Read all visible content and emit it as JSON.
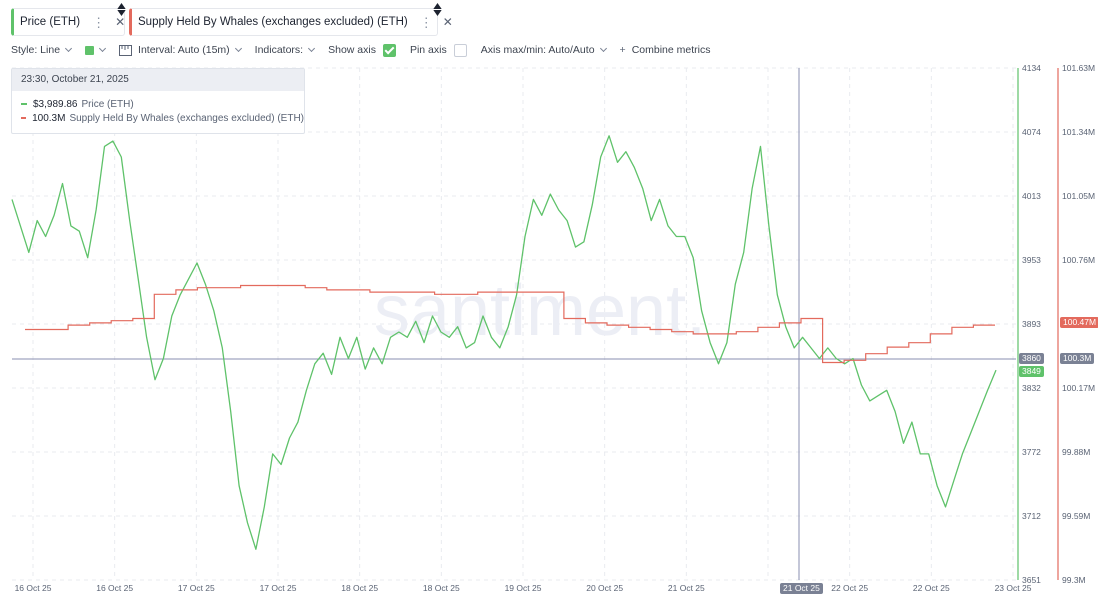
{
  "metrics": [
    {
      "label": "Price (ETH)",
      "color": "#5fc26a"
    },
    {
      "label": "Supply Held By Whales (exchanges excluded) (ETH)",
      "color": "#e36a5d"
    }
  ],
  "toolbar": {
    "style_label": "Style: Line",
    "interval_label": "Interval: Auto (15m)",
    "indicators_label": "Indicators:",
    "show_axis_label": "Show axis",
    "pin_axis_label": "Pin axis",
    "axis_maxmin_label": "Axis max/min: Auto/Auto",
    "combine_label": "Combine metrics"
  },
  "tooltip": {
    "date": "23:30, October 21, 2025",
    "price_value": "$3,989.86",
    "price_name": "Price (ETH)",
    "supply_value": "100.3M",
    "supply_name": "Supply Held By Whales (exchanges excluded) (ETH)"
  },
  "watermark": "santiment.",
  "badges": {
    "hover_price": "3860",
    "last_price": "3849",
    "last_supply": "100.47M",
    "hover_supply": "100.3M",
    "hover_date": "21 Oct 25"
  },
  "chart_data": {
    "type": "line",
    "x_tick_labels": [
      "16 Oct 25",
      "16 Oct 25",
      "17 Oct 25",
      "17 Oct 25",
      "18 Oct 25",
      "18 Oct 25",
      "19 Oct 25",
      "20 Oct 25",
      "21 Oct 25",
      "21 Oct 25",
      "22 Oct 25",
      "22 Oct 25",
      "23 Oct 25"
    ],
    "y_left_ticks": [],
    "y_price_ticks": [
      "4134",
      "4074",
      "4013",
      "3953",
      "3893",
      "3832",
      "3772",
      "3712",
      "3651"
    ],
    "y_price_range": [
      3651,
      4134
    ],
    "y_supply_ticks": [
      "101.63M",
      "101.34M",
      "101.05M",
      "100.76M",
      "100.47M",
      "100.17M",
      "99.88M",
      "99.59M",
      "99.3M"
    ],
    "y_supply_range": [
      99.3,
      101.63
    ],
    "grid": true,
    "series": [
      {
        "name": "Price (ETH)",
        "color": "#5fc26a",
        "axis": "price",
        "values": [
          4010,
          3985,
          3960,
          3990,
          3975,
          3995,
          4025,
          3985,
          3980,
          3955,
          4000,
          4060,
          4065,
          4050,
          3990,
          3935,
          3880,
          3840,
          3860,
          3900,
          3920,
          3935,
          3950,
          3930,
          3905,
          3870,
          3810,
          3740,
          3705,
          3680,
          3720,
          3770,
          3760,
          3785,
          3800,
          3830,
          3855,
          3865,
          3845,
          3880,
          3860,
          3880,
          3850,
          3870,
          3855,
          3880,
          3885,
          3880,
          3895,
          3875,
          3900,
          3885,
          3880,
          3890,
          3870,
          3875,
          3900,
          3880,
          3870,
          3890,
          3920,
          3975,
          4010,
          3995,
          4015,
          4000,
          3990,
          3965,
          3970,
          4005,
          4050,
          4070,
          4045,
          4055,
          4040,
          4020,
          3990,
          4010,
          3985,
          3975,
          3975,
          3955,
          3905,
          3875,
          3855,
          3875,
          3930,
          3960,
          4020,
          4060,
          3985,
          3920,
          3890,
          3870,
          3880,
          3870,
          3860,
          3870,
          3860,
          3855,
          3860,
          3835,
          3820,
          3825,
          3830,
          3810,
          3780,
          3800,
          3770,
          3770,
          3740,
          3720,
          3745,
          3770,
          3790,
          3810,
          3830,
          3849
        ],
        "values_note": "approximate"
      },
      {
        "name": "Supply Held By Whales (exchanges excluded) (ETH)",
        "color": "#e36a5d",
        "axis": "supply",
        "values": [
          100.44,
          100.44,
          100.46,
          100.47,
          100.48,
          100.49,
          100.6,
          100.62,
          100.63,
          100.63,
          100.64,
          100.64,
          100.64,
          100.63,
          100.62,
          100.62,
          100.61,
          100.61,
          100.61,
          100.6,
          100.6,
          100.61,
          100.61,
          100.61,
          100.61,
          100.49,
          100.47,
          100.46,
          100.45,
          100.44,
          100.43,
          100.42,
          100.42,
          100.43,
          100.45,
          100.47,
          100.49,
          100.29,
          100.3,
          100.33,
          100.36,
          100.38,
          100.42,
          100.45,
          100.46,
          100.46
        ],
        "values_note": "approximate"
      }
    ]
  }
}
